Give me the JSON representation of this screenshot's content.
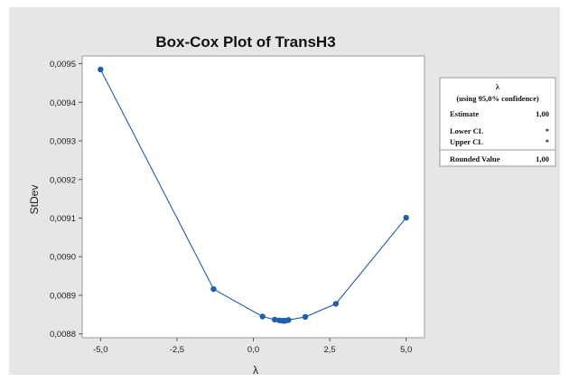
{
  "chart_data": {
    "type": "line",
    "title": "Box-Cox Plot of TransH3",
    "xlabel": "λ",
    "ylabel": "StDev",
    "xlim": [
      -5.6,
      5.6
    ],
    "ylim": [
      0.00879,
      0.00952
    ],
    "x_ticks": [
      -5.0,
      -2.5,
      0.0,
      2.5,
      5.0
    ],
    "x_tick_labels": [
      "-5,0",
      "-2,5",
      "0,0",
      "2,5",
      "5,0"
    ],
    "y_ticks": [
      0.0088,
      0.0089,
      0.009,
      0.0091,
      0.0092,
      0.0093,
      0.0094,
      0.0095
    ],
    "y_tick_labels": [
      "0,0088",
      "0,0089",
      "0,0090",
      "0,0091",
      "0,0092",
      "0,0093",
      "0,0094",
      "0,0095"
    ],
    "grid": false,
    "series": [
      {
        "color": "#1f5fa8",
        "x": [
          -5.0,
          -1.3,
          0.3,
          0.7,
          0.85,
          0.95,
          1.0,
          1.05,
          1.15,
          1.7,
          2.7,
          5.0
        ],
        "y": [
          0.009485,
          0.008916,
          0.008845,
          0.008837,
          0.008835,
          0.008834,
          0.008834,
          0.008834,
          0.008836,
          0.008844,
          0.008878,
          0.009101
        ]
      }
    ],
    "legend": {
      "position": "right",
      "title": "λ",
      "subtitle": "(using 95,0% confidence)",
      "rows": [
        {
          "label": "Estimate",
          "value": "1,00"
        },
        {
          "label": "Lower CL",
          "value": "*"
        },
        {
          "label": "Upper CL",
          "value": "*"
        },
        {
          "label": "Rounded Value",
          "value": "1,00"
        }
      ]
    }
  }
}
